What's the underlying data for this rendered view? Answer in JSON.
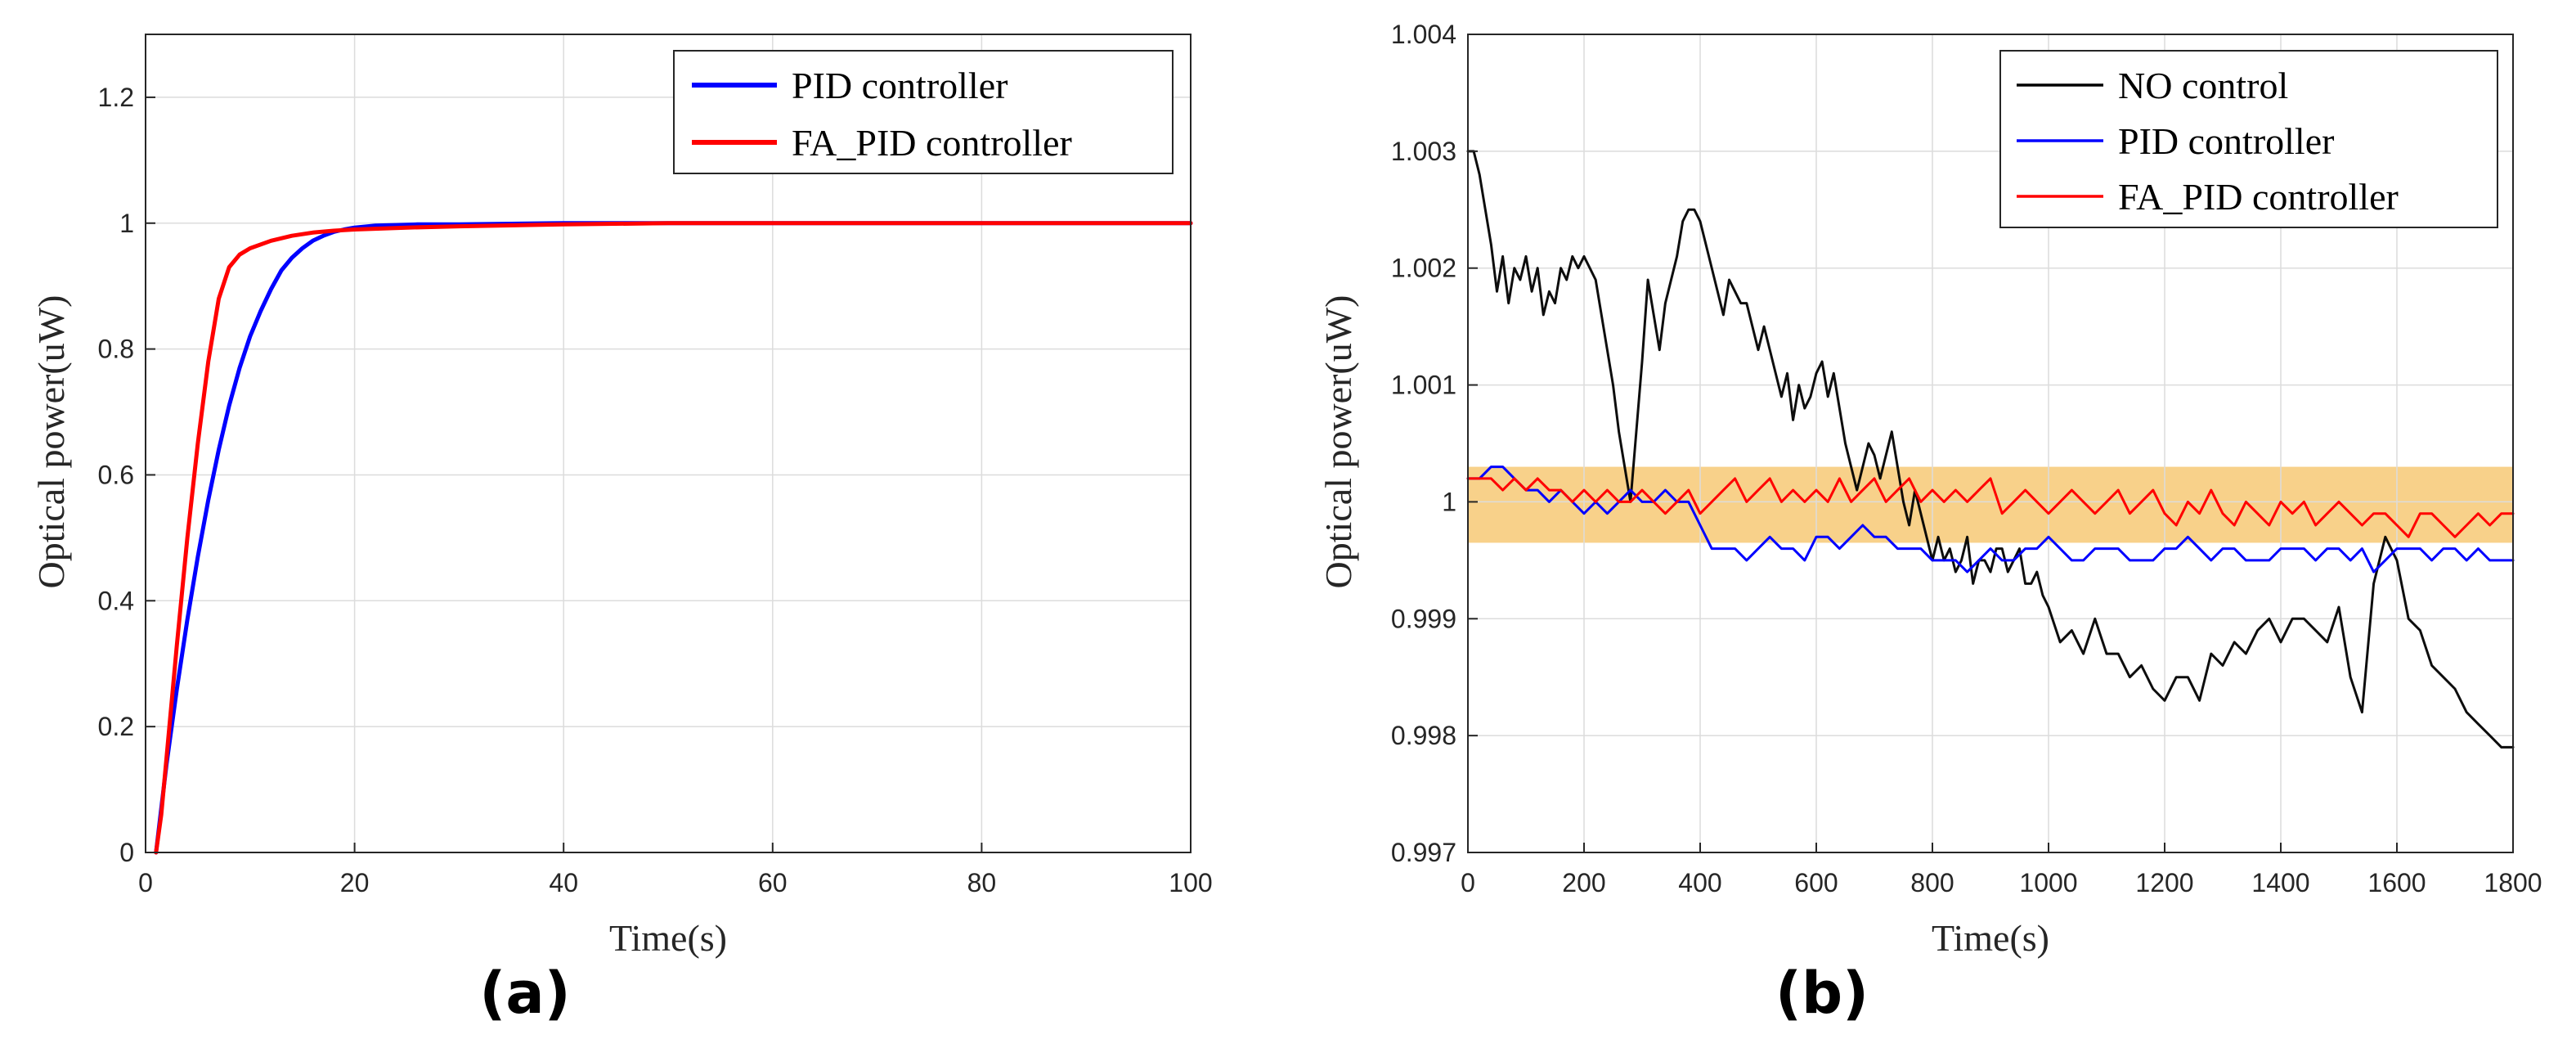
{
  "chart_data": [
    {
      "type": "line",
      "panel_label": "(a)",
      "xlabel": "Time(s)",
      "ylabel": "Optical power(uW)",
      "xlim": [
        0,
        100
      ],
      "ylim": [
        0,
        1.3
      ],
      "xticks": [
        0,
        20,
        40,
        60,
        80,
        100
      ],
      "xtick_labels": [
        "0",
        "20",
        "40",
        "60",
        "80",
        "100"
      ],
      "yticks": [
        0,
        0.2,
        0.4,
        0.6,
        0.8,
        1,
        1.2
      ],
      "ytick_labels": [
        "0",
        "0.2",
        "0.4",
        "0.6",
        "0.8",
        "1",
        "1.2"
      ],
      "grid": true,
      "legend_position": "top-right",
      "series": [
        {
          "name": "PID controller",
          "color": "#0000ff",
          "x": [
            1,
            2,
            3,
            4,
            5,
            6,
            7,
            8,
            9,
            10,
            11,
            12,
            13,
            14,
            15,
            16,
            17,
            18,
            19,
            20,
            22,
            24,
            26,
            28,
            30,
            35,
            40,
            45,
            50,
            60,
            70,
            80,
            90,
            100
          ],
          "y": [
            0,
            0.14,
            0.26,
            0.37,
            0.47,
            0.56,
            0.64,
            0.71,
            0.77,
            0.82,
            0.86,
            0.895,
            0.925,
            0.945,
            0.96,
            0.972,
            0.98,
            0.986,
            0.99,
            0.993,
            0.996,
            0.997,
            0.998,
            0.998,
            0.998,
            0.999,
            1.0,
            1.0,
            1.0,
            1.0,
            1.0,
            1.0,
            1.0,
            1.0
          ]
        },
        {
          "name": "FA_PID controller",
          "color": "#ff0000",
          "x": [
            1,
            1.5,
            2,
            3,
            4,
            5,
            6,
            7,
            8,
            9,
            10,
            12,
            14,
            16,
            18,
            20,
            25,
            30,
            40,
            50,
            60,
            80,
            100
          ],
          "y": [
            0,
            0.06,
            0.15,
            0.33,
            0.5,
            0.65,
            0.78,
            0.88,
            0.93,
            0.95,
            0.96,
            0.972,
            0.98,
            0.985,
            0.988,
            0.99,
            0.993,
            0.995,
            0.998,
            1.0,
            1.0,
            1.0,
            1.0
          ]
        }
      ]
    },
    {
      "type": "line",
      "panel_label": "(b)",
      "xlabel": "Time(s)",
      "ylabel": "Optical power(uW)",
      "xlim": [
        0,
        1800
      ],
      "ylim": [
        0.997,
        1.004
      ],
      "xticks": [
        0,
        200,
        400,
        600,
        800,
        1000,
        1200,
        1400,
        1600,
        1800
      ],
      "xtick_labels": [
        "0",
        "200",
        "400",
        "600",
        "800",
        "1000",
        "1200",
        "1400",
        "1600",
        "1800"
      ],
      "yticks": [
        0.997,
        0.998,
        0.999,
        1.0,
        1.001,
        1.002,
        1.003,
        1.004
      ],
      "ytick_labels": [
        "0.997",
        "0.998",
        "0.999",
        "1",
        "1.001",
        "1.002",
        "1.003",
        "1.004"
      ],
      "grid": true,
      "legend_position": "top-right",
      "band": {
        "y_range": [
          0.99965,
          1.0003
        ],
        "color": "#f5c263"
      },
      "series": [
        {
          "name": "NO control",
          "color": "#000000",
          "x": [
            0,
            10,
            20,
            30,
            40,
            50,
            60,
            70,
            80,
            90,
            100,
            110,
            120,
            130,
            140,
            150,
            160,
            170,
            180,
            190,
            200,
            210,
            220,
            230,
            240,
            250,
            260,
            270,
            280,
            290,
            300,
            310,
            320,
            330,
            340,
            350,
            360,
            370,
            380,
            390,
            400,
            410,
            420,
            430,
            440,
            450,
            460,
            470,
            480,
            490,
            500,
            510,
            520,
            530,
            540,
            550,
            560,
            570,
            580,
            590,
            600,
            610,
            620,
            630,
            640,
            650,
            660,
            670,
            680,
            690,
            700,
            710,
            720,
            730,
            740,
            750,
            760,
            770,
            780,
            790,
            800,
            810,
            820,
            830,
            840,
            850,
            860,
            870,
            880,
            890,
            900,
            910,
            920,
            930,
            940,
            950,
            960,
            970,
            980,
            990,
            1000,
            1020,
            1040,
            1060,
            1080,
            1100,
            1120,
            1140,
            1160,
            1180,
            1200,
            1220,
            1240,
            1260,
            1280,
            1300,
            1320,
            1340,
            1360,
            1380,
            1400,
            1420,
            1440,
            1460,
            1480,
            1500,
            1520,
            1540,
            1560,
            1580,
            1600,
            1620,
            1640,
            1660,
            1680,
            1700,
            1720,
            1740,
            1760,
            1780,
            1800
          ],
          "y": [
            1.003,
            1.003,
            1.0028,
            1.0025,
            1.0022,
            1.0018,
            1.0021,
            1.0017,
            1.002,
            1.0019,
            1.0021,
            1.0018,
            1.002,
            1.0016,
            1.0018,
            1.0017,
            1.002,
            1.0019,
            1.0021,
            1.002,
            1.0021,
            1.002,
            1.0019,
            1.0016,
            1.0013,
            1.001,
            1.0006,
            1.0003,
            1.0,
            1.0006,
            1.0012,
            1.0019,
            1.0016,
            1.0013,
            1.0017,
            1.0019,
            1.0021,
            1.0024,
            1.0025,
            1.0025,
            1.0024,
            1.0022,
            1.002,
            1.0018,
            1.0016,
            1.0019,
            1.0018,
            1.0017,
            1.0017,
            1.0015,
            1.0013,
            1.0015,
            1.0013,
            1.0011,
            1.0009,
            1.0011,
            1.0007,
            1.001,
            1.0008,
            1.0009,
            1.0011,
            1.0012,
            1.0009,
            1.0011,
            1.0008,
            1.0005,
            1.0003,
            1.0001,
            1.0003,
            1.0005,
            1.0004,
            1.0002,
            1.0004,
            1.0006,
            1.0003,
            1.0,
            0.9998,
            1.0001,
            0.9999,
            0.9997,
            0.9995,
            0.9997,
            0.9995,
            0.9996,
            0.9994,
            0.9995,
            0.9997,
            0.9993,
            0.9995,
            0.9995,
            0.9994,
            0.9996,
            0.9996,
            0.9994,
            0.9995,
            0.9996,
            0.9993,
            0.9993,
            0.9994,
            0.9992,
            0.9991,
            0.9988,
            0.9989,
            0.9987,
            0.999,
            0.9987,
            0.9987,
            0.9985,
            0.9986,
            0.9984,
            0.9983,
            0.9985,
            0.9985,
            0.9983,
            0.9987,
            0.9986,
            0.9988,
            0.9987,
            0.9989,
            0.999,
            0.9988,
            0.999,
            0.999,
            0.9989,
            0.9988,
            0.9991,
            0.9985,
            0.9982,
            0.9993,
            0.9997,
            0.9995,
            0.999,
            0.9989,
            0.9986,
            0.9985,
            0.9984,
            0.9982,
            0.9981,
            0.998,
            0.9979,
            0.9979
          ]
        },
        {
          "name": "PID controller",
          "color": "#0000ff",
          "x": [
            0,
            20,
            40,
            60,
            80,
            100,
            120,
            140,
            160,
            180,
            200,
            220,
            240,
            260,
            280,
            300,
            320,
            340,
            360,
            380,
            400,
            420,
            440,
            460,
            480,
            500,
            520,
            540,
            560,
            580,
            600,
            620,
            640,
            660,
            680,
            700,
            720,
            740,
            760,
            780,
            800,
            820,
            840,
            860,
            880,
            900,
            920,
            940,
            960,
            980,
            1000,
            1020,
            1040,
            1060,
            1080,
            1100,
            1120,
            1140,
            1160,
            1180,
            1200,
            1220,
            1240,
            1260,
            1280,
            1300,
            1320,
            1340,
            1360,
            1380,
            1400,
            1420,
            1440,
            1460,
            1480,
            1500,
            1520,
            1540,
            1560,
            1580,
            1600,
            1620,
            1640,
            1660,
            1680,
            1700,
            1720,
            1740,
            1760,
            1780,
            1800
          ],
          "y": [
            1.0002,
            1.0002,
            1.0003,
            1.0003,
            1.0002,
            1.0001,
            1.0001,
            1.0,
            1.0001,
            1.0,
            0.9999,
            1.0,
            0.9999,
            1.0,
            1.0001,
            1.0,
            1.0,
            1.0001,
            1.0,
            1.0,
            0.9998,
            0.9996,
            0.9996,
            0.9996,
            0.9995,
            0.9996,
            0.9997,
            0.9996,
            0.9996,
            0.9995,
            0.9997,
            0.9997,
            0.9996,
            0.9997,
            0.9998,
            0.9997,
            0.9997,
            0.9996,
            0.9996,
            0.9996,
            0.9995,
            0.9995,
            0.9995,
            0.9994,
            0.9995,
            0.9996,
            0.9995,
            0.9995,
            0.9996,
            0.9996,
            0.9997,
            0.9996,
            0.9995,
            0.9995,
            0.9996,
            0.9996,
            0.9996,
            0.9995,
            0.9995,
            0.9995,
            0.9996,
            0.9996,
            0.9997,
            0.9996,
            0.9995,
            0.9996,
            0.9996,
            0.9995,
            0.9995,
            0.9995,
            0.9996,
            0.9996,
            0.9996,
            0.9995,
            0.9996,
            0.9996,
            0.9995,
            0.9996,
            0.9994,
            0.9995,
            0.9996,
            0.9996,
            0.9996,
            0.9995,
            0.9996,
            0.9996,
            0.9995,
            0.9996,
            0.9995,
            0.9995,
            0.9995
          ]
        },
        {
          "name": "FA_PID controller",
          "color": "#ff0000",
          "x": [
            0,
            20,
            40,
            60,
            80,
            100,
            120,
            140,
            160,
            180,
            200,
            220,
            240,
            260,
            280,
            300,
            320,
            340,
            360,
            380,
            400,
            420,
            440,
            460,
            480,
            500,
            520,
            540,
            560,
            580,
            600,
            620,
            640,
            660,
            680,
            700,
            720,
            740,
            760,
            780,
            800,
            820,
            840,
            860,
            880,
            900,
            920,
            940,
            960,
            980,
            1000,
            1020,
            1040,
            1060,
            1080,
            1100,
            1120,
            1140,
            1160,
            1180,
            1200,
            1220,
            1240,
            1260,
            1280,
            1300,
            1320,
            1340,
            1360,
            1380,
            1400,
            1420,
            1440,
            1460,
            1480,
            1500,
            1520,
            1540,
            1560,
            1580,
            1600,
            1620,
            1640,
            1660,
            1680,
            1700,
            1720,
            1740,
            1760,
            1780,
            1800
          ],
          "y": [
            1.0002,
            1.0002,
            1.0002,
            1.0001,
            1.0002,
            1.0001,
            1.0002,
            1.0001,
            1.0001,
            1.0,
            1.0001,
            1.0,
            1.0001,
            1.0,
            1.0,
            1.0001,
            1.0,
            0.9999,
            1.0,
            1.0001,
            0.9999,
            1.0,
            1.0001,
            1.0002,
            1.0,
            1.0001,
            1.0002,
            1.0,
            1.0001,
            1.0,
            1.0001,
            1.0,
            1.0002,
            1.0,
            1.0001,
            1.0002,
            1.0,
            1.0001,
            1.0002,
            1.0,
            1.0001,
            1.0,
            1.0001,
            1.0,
            1.0001,
            1.0002,
            0.9999,
            1.0,
            1.0001,
            1.0,
            0.9999,
            1.0,
            1.0001,
            1.0,
            0.9999,
            1.0,
            1.0001,
            0.9999,
            1.0,
            1.0001,
            0.9999,
            0.9998,
            1.0,
            0.9999,
            1.0001,
            0.9999,
            0.9998,
            1.0,
            0.9999,
            0.9998,
            1.0,
            0.9999,
            1.0,
            0.9998,
            0.9999,
            1.0,
            0.9999,
            0.9998,
            0.9999,
            0.9999,
            0.9998,
            0.9997,
            0.9999,
            0.9999,
            0.9998,
            0.9997,
            0.9998,
            0.9999,
            0.9998,
            0.9999,
            0.9999
          ]
        }
      ]
    }
  ]
}
